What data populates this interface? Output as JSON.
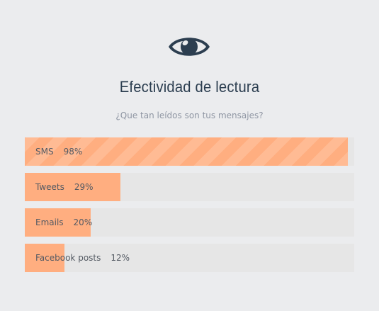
{
  "header": {
    "icon": "eye-icon",
    "title": "Efectividad de lectura",
    "subtitle": "¿Que tan leídos son tus mensajes?"
  },
  "colors": {
    "background": "#ebecee",
    "bar_track": "#e6e6e6",
    "bar_fill": "#ffae80",
    "title": "#2c3e50",
    "subtitle": "#8f96a3"
  },
  "bars": [
    {
      "label": "SMS",
      "percent_label": "98%",
      "value": 98,
      "striped": true
    },
    {
      "label": "Tweets",
      "percent_label": "29%",
      "value": 29,
      "striped": false
    },
    {
      "label": "Emails",
      "percent_label": "20%",
      "value": 20,
      "striped": false
    },
    {
      "label": "Facebook posts",
      "percent_label": "12%",
      "value": 12,
      "striped": false
    }
  ]
}
